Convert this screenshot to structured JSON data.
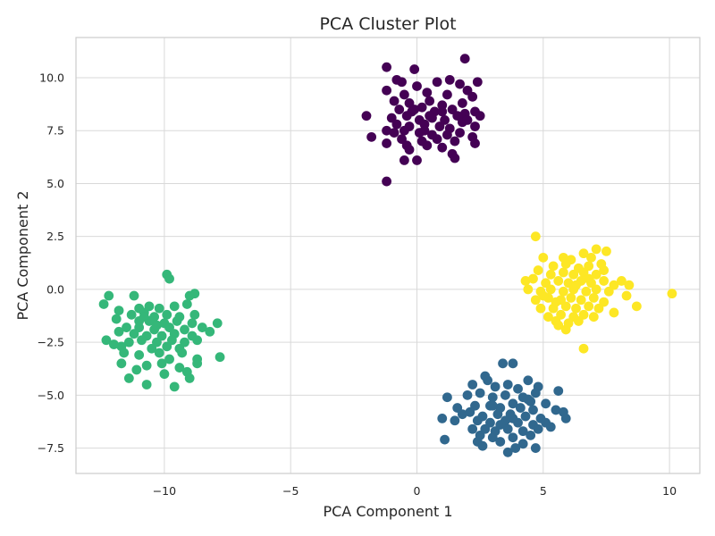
{
  "chart_data": {
    "type": "scatter",
    "title": "PCA Cluster Plot",
    "xlabel": "PCA Component 1",
    "ylabel": "PCA Component 2",
    "xlim": [
      -13.5,
      11.2
    ],
    "ylim": [
      -8.7,
      11.9
    ],
    "xticks": [
      -10,
      -5,
      0,
      5,
      10
    ],
    "xtick_labels": [
      "−10",
      "−5",
      "0",
      "5",
      "10"
    ],
    "yticks": [
      -7.5,
      -5.0,
      -2.5,
      0.0,
      2.5,
      5.0,
      7.5,
      10.0
    ],
    "ytick_labels": [
      "−7.5",
      "−5.0",
      "−2.5",
      "0.0",
      "2.5",
      "5.0",
      "7.5",
      "10.0"
    ],
    "grid": true,
    "legend": "none",
    "series": [
      {
        "color": "#440154",
        "points": [
          [
            -1.2,
            10.5
          ],
          [
            -0.1,
            10.4
          ],
          [
            1.9,
            10.9
          ],
          [
            2.4,
            9.8
          ],
          [
            -0.8,
            9.9
          ],
          [
            -0.6,
            9.8
          ],
          [
            0.8,
            9.8
          ],
          [
            1.3,
            9.9
          ],
          [
            -1.2,
            9.4
          ],
          [
            0.0,
            9.6
          ],
          [
            1.7,
            9.7
          ],
          [
            2.0,
            9.4
          ],
          [
            -0.5,
            9.2
          ],
          [
            0.4,
            9.3
          ],
          [
            1.2,
            9.2
          ],
          [
            2.2,
            9.1
          ],
          [
            -0.9,
            8.9
          ],
          [
            -0.3,
            8.8
          ],
          [
            0.5,
            8.9
          ],
          [
            1.0,
            8.7
          ],
          [
            1.8,
            8.8
          ],
          [
            -0.7,
            8.5
          ],
          [
            -0.2,
            8.4
          ],
          [
            0.2,
            8.6
          ],
          [
            0.7,
            8.4
          ],
          [
            1.4,
            8.5
          ],
          [
            1.9,
            8.3
          ],
          [
            2.3,
            8.4
          ],
          [
            -2.0,
            8.2
          ],
          [
            -1.0,
            8.1
          ],
          [
            -0.4,
            8.2
          ],
          [
            0.1,
            8.0
          ],
          [
            0.6,
            8.1
          ],
          [
            1.1,
            8.0
          ],
          [
            1.6,
            8.2
          ],
          [
            1.8,
            7.9
          ],
          [
            2.0,
            8.0
          ],
          [
            -0.8,
            7.8
          ],
          [
            -0.3,
            7.7
          ],
          [
            0.3,
            7.8
          ],
          [
            0.9,
            7.7
          ],
          [
            1.3,
            7.6
          ],
          [
            2.3,
            7.7
          ],
          [
            2.5,
            8.2
          ],
          [
            -1.2,
            7.5
          ],
          [
            -0.9,
            7.4
          ],
          [
            -0.5,
            7.5
          ],
          [
            0.1,
            7.4
          ],
          [
            0.6,
            7.3
          ],
          [
            1.2,
            7.3
          ],
          [
            1.7,
            7.4
          ],
          [
            -1.8,
            7.2
          ],
          [
            -0.6,
            7.1
          ],
          [
            0.2,
            7.0
          ],
          [
            0.8,
            7.1
          ],
          [
            1.5,
            7.0
          ],
          [
            2.2,
            7.2
          ],
          [
            -1.2,
            6.9
          ],
          [
            -0.4,
            6.8
          ],
          [
            0.4,
            6.8
          ],
          [
            1.0,
            6.7
          ],
          [
            2.3,
            6.9
          ],
          [
            -0.5,
            6.1
          ],
          [
            0.0,
            6.1
          ],
          [
            -0.3,
            6.6
          ],
          [
            1.4,
            6.4
          ],
          [
            1.5,
            6.2
          ],
          [
            -1.2,
            5.1
          ],
          [
            0.5,
            8.2
          ],
          [
            1.0,
            8.4
          ],
          [
            -0.1,
            8.5
          ],
          [
            0.3,
            7.5
          ]
        ]
      },
      {
        "color": "#31688e",
        "points": [
          [
            2.7,
            -4.1
          ],
          [
            3.4,
            -3.5
          ],
          [
            3.8,
            -3.5
          ],
          [
            4.4,
            -4.3
          ],
          [
            4.8,
            -4.6
          ],
          [
            5.6,
            -4.8
          ],
          [
            2.2,
            -4.5
          ],
          [
            2.8,
            -4.3
          ],
          [
            3.1,
            -4.6
          ],
          [
            3.6,
            -4.5
          ],
          [
            4.0,
            -4.7
          ],
          [
            4.7,
            -4.9
          ],
          [
            1.2,
            -5.1
          ],
          [
            2.0,
            -5.0
          ],
          [
            2.5,
            -4.9
          ],
          [
            3.0,
            -5.1
          ],
          [
            3.5,
            -5.0
          ],
          [
            4.2,
            -5.1
          ],
          [
            4.5,
            -5.3
          ],
          [
            5.1,
            -5.4
          ],
          [
            1.6,
            -5.6
          ],
          [
            2.3,
            -5.5
          ],
          [
            2.9,
            -5.5
          ],
          [
            3.3,
            -5.6
          ],
          [
            3.8,
            -5.4
          ],
          [
            4.1,
            -5.6
          ],
          [
            4.6,
            -5.7
          ],
          [
            5.5,
            -5.7
          ],
          [
            5.8,
            -5.8
          ],
          [
            1.8,
            -5.9
          ],
          [
            2.1,
            -5.8
          ],
          [
            2.6,
            -6.0
          ],
          [
            3.2,
            -5.9
          ],
          [
            3.7,
            -5.9
          ],
          [
            4.3,
            -6.0
          ],
          [
            4.9,
            -6.1
          ],
          [
            1.0,
            -6.1
          ],
          [
            1.5,
            -6.2
          ],
          [
            2.4,
            -6.2
          ],
          [
            2.9,
            -6.3
          ],
          [
            3.5,
            -6.2
          ],
          [
            4.0,
            -6.3
          ],
          [
            4.6,
            -6.4
          ],
          [
            5.1,
            -6.3
          ],
          [
            5.9,
            -6.1
          ],
          [
            2.2,
            -6.6
          ],
          [
            2.7,
            -6.6
          ],
          [
            3.1,
            -6.7
          ],
          [
            3.6,
            -6.6
          ],
          [
            4.2,
            -6.7
          ],
          [
            4.8,
            -6.6
          ],
          [
            5.3,
            -6.5
          ],
          [
            2.5,
            -6.9
          ],
          [
            3.0,
            -7.0
          ],
          [
            3.8,
            -7.0
          ],
          [
            4.5,
            -6.9
          ],
          [
            2.4,
            -7.2
          ],
          [
            3.3,
            -7.2
          ],
          [
            4.2,
            -7.3
          ],
          [
            1.1,
            -7.1
          ],
          [
            2.6,
            -7.4
          ],
          [
            3.9,
            -7.5
          ],
          [
            4.7,
            -7.5
          ],
          [
            3.6,
            -7.7
          ],
          [
            3.0,
            -5.5
          ],
          [
            3.8,
            -6.1
          ],
          [
            4.4,
            -5.2
          ],
          [
            3.3,
            -6.4
          ]
        ]
      },
      {
        "color": "#35b779",
        "points": [
          [
            -9.9,
            0.7
          ],
          [
            -9.8,
            0.5
          ],
          [
            -11.2,
            -0.3
          ],
          [
            -8.8,
            -0.2
          ],
          [
            -9.0,
            -0.3
          ],
          [
            -12.2,
            -0.3
          ],
          [
            -12.4,
            -0.7
          ],
          [
            -11.0,
            -0.9
          ],
          [
            -10.6,
            -0.8
          ],
          [
            -10.2,
            -0.9
          ],
          [
            -9.6,
            -0.8
          ],
          [
            -9.1,
            -0.7
          ],
          [
            -11.8,
            -1.0
          ],
          [
            -11.3,
            -1.2
          ],
          [
            -10.8,
            -1.1
          ],
          [
            -10.4,
            -1.3
          ],
          [
            -9.9,
            -1.2
          ],
          [
            -9.4,
            -1.3
          ],
          [
            -8.8,
            -1.2
          ],
          [
            -11.9,
            -1.4
          ],
          [
            -11.0,
            -1.5
          ],
          [
            -10.6,
            -1.5
          ],
          [
            -10.0,
            -1.6
          ],
          [
            -9.5,
            -1.5
          ],
          [
            -8.9,
            -1.6
          ],
          [
            -7.9,
            -1.6
          ],
          [
            -11.5,
            -1.8
          ],
          [
            -11.0,
            -1.8
          ],
          [
            -10.4,
            -1.9
          ],
          [
            -9.8,
            -1.8
          ],
          [
            -9.2,
            -1.9
          ],
          [
            -8.5,
            -1.8
          ],
          [
            -8.2,
            -2.0
          ],
          [
            -11.8,
            -2.0
          ],
          [
            -11.2,
            -2.1
          ],
          [
            -10.7,
            -2.2
          ],
          [
            -10.1,
            -2.2
          ],
          [
            -9.6,
            -2.1
          ],
          [
            -8.9,
            -2.2
          ],
          [
            -12.3,
            -2.4
          ],
          [
            -11.4,
            -2.5
          ],
          [
            -10.9,
            -2.4
          ],
          [
            -10.3,
            -2.5
          ],
          [
            -9.7,
            -2.4
          ],
          [
            -9.2,
            -2.5
          ],
          [
            -8.7,
            -2.4
          ],
          [
            -11.7,
            -2.7
          ],
          [
            -10.5,
            -2.8
          ],
          [
            -9.9,
            -2.7
          ],
          [
            -9.4,
            -2.8
          ],
          [
            -12.0,
            -2.6
          ],
          [
            -11.6,
            -3.0
          ],
          [
            -11.0,
            -3.1
          ],
          [
            -10.2,
            -3.0
          ],
          [
            -9.3,
            -3.0
          ],
          [
            -8.7,
            -3.3
          ],
          [
            -7.8,
            -3.2
          ],
          [
            -11.7,
            -3.5
          ],
          [
            -11.1,
            -3.8
          ],
          [
            -10.7,
            -3.6
          ],
          [
            -10.1,
            -3.5
          ],
          [
            -9.8,
            -3.3
          ],
          [
            -9.4,
            -3.7
          ],
          [
            -8.7,
            -3.5
          ],
          [
            -11.4,
            -4.2
          ],
          [
            -10.0,
            -4.0
          ],
          [
            -9.1,
            -3.9
          ],
          [
            -10.7,
            -4.5
          ],
          [
            -9.6,
            -4.6
          ],
          [
            -9.0,
            -4.2
          ],
          [
            -10.3,
            -1.7
          ],
          [
            -10.8,
            -1.3
          ]
        ]
      },
      {
        "color": "#fde725",
        "points": [
          [
            4.7,
            2.5
          ],
          [
            7.1,
            1.9
          ],
          [
            7.5,
            1.8
          ],
          [
            6.6,
            1.7
          ],
          [
            5.0,
            1.5
          ],
          [
            5.8,
            1.5
          ],
          [
            6.1,
            1.4
          ],
          [
            6.9,
            1.5
          ],
          [
            5.4,
            1.1
          ],
          [
            5.9,
            1.2
          ],
          [
            6.4,
            1.0
          ],
          [
            6.8,
            1.1
          ],
          [
            7.3,
            1.2
          ],
          [
            4.8,
            0.9
          ],
          [
            5.3,
            0.7
          ],
          [
            5.8,
            0.8
          ],
          [
            6.2,
            0.7
          ],
          [
            6.6,
            0.8
          ],
          [
            7.1,
            0.7
          ],
          [
            7.4,
            0.9
          ],
          [
            8.1,
            0.4
          ],
          [
            4.3,
            0.4
          ],
          [
            4.6,
            0.5
          ],
          [
            5.1,
            0.3
          ],
          [
            5.6,
            0.4
          ],
          [
            6.0,
            0.3
          ],
          [
            6.5,
            0.4
          ],
          [
            6.9,
            0.3
          ],
          [
            7.4,
            0.4
          ],
          [
            7.8,
            0.2
          ],
          [
            8.4,
            0.2
          ],
          [
            4.4,
            0.0
          ],
          [
            4.9,
            -0.1
          ],
          [
            5.3,
            0.0
          ],
          [
            5.8,
            -0.1
          ],
          [
            6.2,
            0.0
          ],
          [
            6.7,
            -0.1
          ],
          [
            7.1,
            0.0
          ],
          [
            7.6,
            -0.1
          ],
          [
            8.3,
            -0.3
          ],
          [
            10.1,
            -0.2
          ],
          [
            4.7,
            -0.5
          ],
          [
            5.2,
            -0.4
          ],
          [
            5.7,
            -0.5
          ],
          [
            6.1,
            -0.4
          ],
          [
            6.5,
            -0.5
          ],
          [
            7.0,
            -0.4
          ],
          [
            7.4,
            -0.6
          ],
          [
            8.7,
            -0.8
          ],
          [
            4.9,
            -0.9
          ],
          [
            5.4,
            -0.9
          ],
          [
            5.9,
            -0.8
          ],
          [
            6.3,
            -0.9
          ],
          [
            6.8,
            -0.8
          ],
          [
            7.2,
            -0.9
          ],
          [
            7.8,
            -1.1
          ],
          [
            5.2,
            -1.3
          ],
          [
            5.7,
            -1.2
          ],
          [
            6.2,
            -1.3
          ],
          [
            6.6,
            -1.2
          ],
          [
            7.0,
            -1.3
          ],
          [
            5.5,
            -1.5
          ],
          [
            6.0,
            -1.6
          ],
          [
            6.4,
            -1.5
          ],
          [
            5.9,
            -1.9
          ],
          [
            5.6,
            -1.7
          ],
          [
            6.6,
            -2.8
          ],
          [
            6.3,
            0.2
          ],
          [
            5.5,
            -0.6
          ],
          [
            6.8,
            0.5
          ],
          [
            5.0,
            -0.3
          ]
        ]
      }
    ]
  }
}
